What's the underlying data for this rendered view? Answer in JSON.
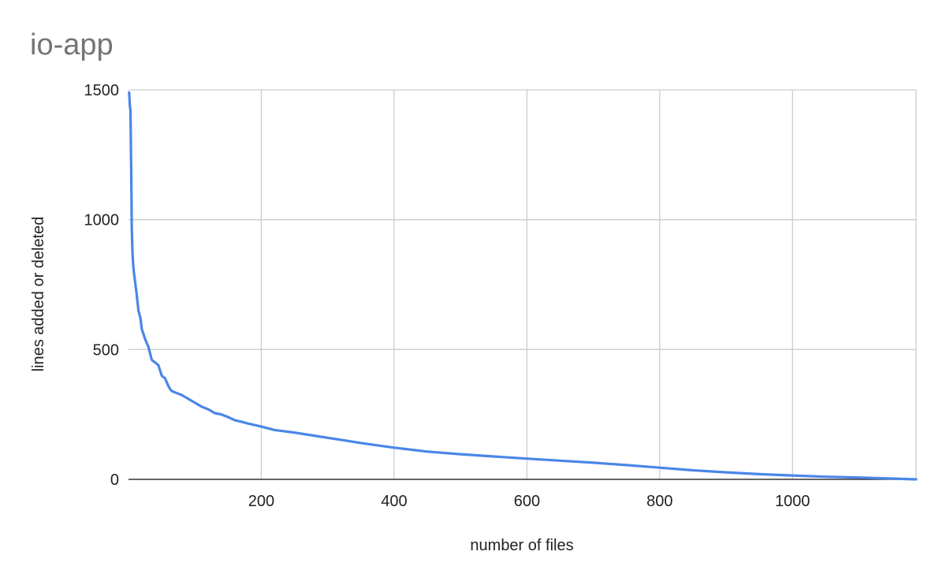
{
  "chart_data": {
    "type": "line",
    "title": "io-app",
    "xlabel": "number of files",
    "ylabel": "lines added or deleted",
    "xlim": [
      0,
      1186
    ],
    "ylim": [
      0,
      1500
    ],
    "xticks": [
      200,
      400,
      600,
      800,
      1000
    ],
    "yticks": [
      0,
      500,
      1000,
      1500
    ],
    "grid": true,
    "legend": "none",
    "series": [
      {
        "color": "#4a86e8",
        "x": [
          1,
          2,
          3,
          4,
          5,
          6,
          7,
          8,
          10,
          12,
          15,
          18,
          20,
          25,
          30,
          35,
          40,
          45,
          50,
          52,
          55,
          60,
          62,
          65,
          70,
          80,
          90,
          100,
          110,
          120,
          130,
          140,
          150,
          160,
          170,
          180,
          200,
          220,
          250,
          275,
          300,
          325,
          350,
          400,
          450,
          500,
          550,
          600,
          650,
          700,
          750,
          800,
          850,
          900,
          950,
          1000,
          1050,
          1100,
          1150,
          1186
        ],
        "y": [
          1490,
          1440,
          1420,
          1200,
          960,
          870,
          830,
          800,
          760,
          720,
          650,
          620,
          580,
          540,
          510,
          460,
          450,
          440,
          400,
          395,
          390,
          360,
          350,
          340,
          335,
          325,
          310,
          295,
          280,
          270,
          255,
          250,
          240,
          228,
          222,
          215,
          203,
          190,
          180,
          170,
          160,
          150,
          140,
          122,
          107,
          97,
          88,
          80,
          72,
          64,
          55,
          45,
          35,
          27,
          20,
          15,
          10,
          7,
          3,
          0
        ]
      }
    ]
  }
}
